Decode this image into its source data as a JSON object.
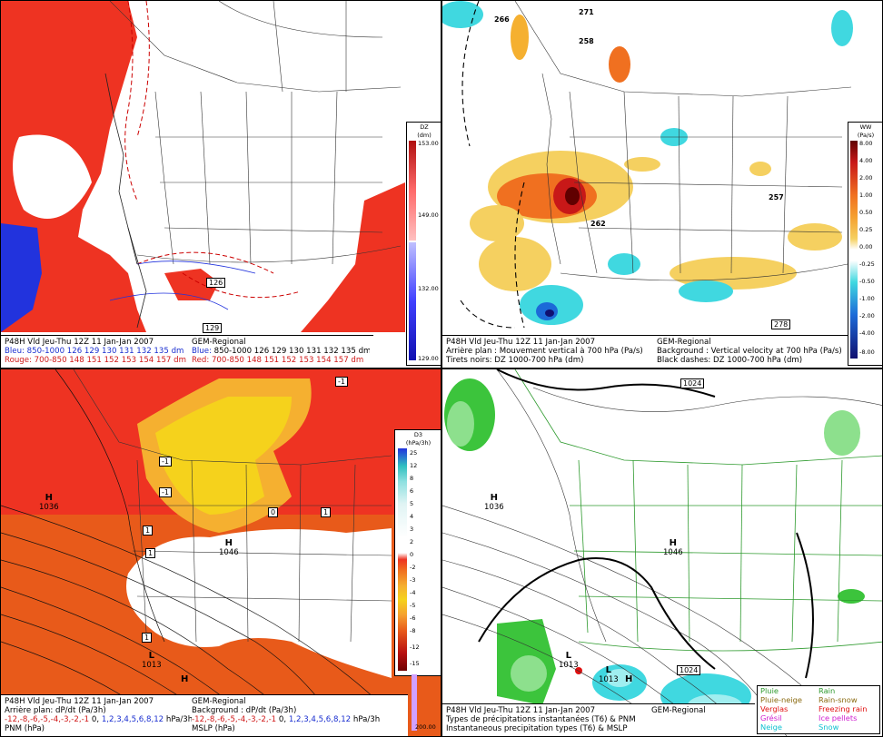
{
  "panels": {
    "tl": {
      "colorbar": {
        "title": "DZ",
        "unit": "(dm)",
        "ticks": [
          "153.00",
          "149.00",
          "132.00",
          "129.00"
        ]
      },
      "map_labels": [
        "126",
        "129"
      ],
      "caption": {
        "line1_left": "P48H Vld Jeu-Thu 12Z 11 Jan-Jan 2007",
        "line1_right": "GEM-Regional",
        "line2_left_label": "Bleu:",
        "line2_left_values": "850-1000 126 129 130 131 132 135 dm",
        "line2_right_label": "Blue:",
        "line2_right_values": "850-1000 126 129 130 131 132 135 dm",
        "line3_left_label": "Rouge:",
        "line3_left_values": "700-850 148 151 152 153 154 157 dm",
        "line3_right_label": "Red:",
        "line3_right_values": "700-850 148 151 152 153 154 157 dm"
      }
    },
    "tr": {
      "colorbar": {
        "title": "WW",
        "unit": "(Pa/s)",
        "ticks": [
          "8.00",
          "4.00",
          "2.00",
          "1.00",
          "0.50",
          "0.25",
          "0.00",
          "-0.25",
          "-0.50",
          "-1.00",
          "-2.00",
          "-4.00",
          "-8.00"
        ]
      },
      "map_labels": [
        "266",
        "271",
        "258",
        "257",
        "262",
        "278"
      ],
      "caption": {
        "line1_left": "P48H Vld Jeu-Thu 12Z 11 Jan-Jan 2007",
        "line1_right": "GEM-Regional",
        "line2_left": "Arrière plan : Mouvement vertical à 700 hPa (Pa/s)",
        "line2_right": "Background : Vertical velocity at 700 hPa (Pa/s)",
        "line3_left": "Tirets noirs: DZ 1000-700 hPa (dm)",
        "line3_right": "Black dashes: DZ 1000-700 hPa (dm)"
      }
    },
    "bl": {
      "colorbar": {
        "title": "D3",
        "unit": "(hPa/3h)",
        "ticks": [
          "25",
          "12",
          "8",
          "6",
          "5",
          "4",
          "3",
          "2",
          "0",
          "-2",
          "-3",
          "-4",
          "-5",
          "-6",
          "-8",
          "-12",
          "-15"
        ],
        "extra_tick": "200.00"
      },
      "map_labels": [
        "-1",
        "-1",
        "1",
        "1",
        "0",
        "1",
        "-1",
        "1"
      ],
      "highs_lows": [
        {
          "type": "H",
          "value": "1036"
        },
        {
          "type": "H",
          "value": "1046"
        },
        {
          "type": "L",
          "value": "1013"
        },
        {
          "type": "H",
          "value": "1012"
        }
      ],
      "caption": {
        "line1_left": "P48H Vld Jeu-Thu 12Z 11 Jan-Jan 2007",
        "line1_right": "GEM-Regional",
        "line2_left": "Arrière plan: dP/dt (Pa/3h)",
        "line2_right": "Background : dP/dt (Pa/3h)",
        "line3_left_red": "-12,-8,-6,-5,-4,-3,-2,-1",
        "line3_left_black": "0,",
        "line3_left_blue": "1,2,3,4,5,6,8,12",
        "line3_left_unit": "hPa/3h",
        "line3_right_red": "-12,-8,-6,-5,-4,-3,-2,-1",
        "line3_right_black": "0,",
        "line3_right_blue": "1,2,3,4,5,6,8,12",
        "line3_right_unit": "hPa/3h",
        "line4_left": "PNM (hPa)",
        "line4_right": "MSLP (hPa)"
      }
    },
    "br": {
      "map_labels": [
        "1024",
        "1024"
      ],
      "highs_lows": [
        {
          "type": "H",
          "value": "1036"
        },
        {
          "type": "H",
          "value": "1046"
        },
        {
          "type": "L",
          "value": "1013"
        },
        {
          "type": "L",
          "value": "1013"
        },
        {
          "type": "H",
          "value": ""
        }
      ],
      "legend": [
        {
          "fr": "Pluie",
          "en": "Rain",
          "color": "#2e9a2e"
        },
        {
          "fr": "Pluie-neige",
          "en": "Rain-snow",
          "color": "#8a6a10"
        },
        {
          "fr": "Verglas",
          "en": "Freezing rain",
          "color": "#e01010"
        },
        {
          "fr": "Grésil",
          "en": "Ice pellets",
          "color": "#d020d0"
        },
        {
          "fr": "Neige",
          "en": "Snow",
          "color": "#10c0d0"
        }
      ],
      "caption": {
        "line1_left": "P48H Vld Jeu-Thu 12Z 11 Jan-Jan 2007",
        "line1_right": "GEM-Regional",
        "line2": "Types de précipitations instantanées (T6) & PNM",
        "line3": "Instantaneous precipitation types (T6) & MSLP"
      }
    }
  },
  "colors": {
    "red_fill": "#ee3322",
    "blue_fill": "#2233dd",
    "orange_fill": "#e85a1a",
    "yellow_fill": "#f5d21c",
    "green_fill": "#3cc43c",
    "cyan_fill": "#40d8e0"
  }
}
